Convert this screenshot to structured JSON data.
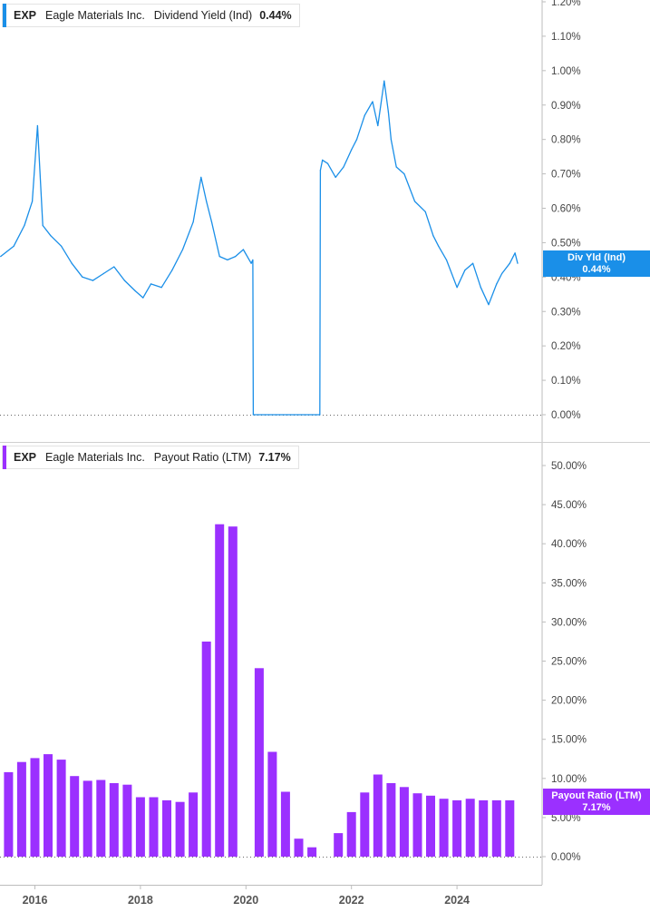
{
  "panel1": {
    "ticker": "EXP",
    "company": "Eagle Materials Inc.",
    "metric": "Dividend Yield (Ind)",
    "value": "0.44%",
    "tag_line1": "Div Yld (Ind)",
    "tag_line2": "0.44%",
    "color": "#1a8fe8"
  },
  "panel2": {
    "ticker": "EXP",
    "company": "Eagle Materials Inc.",
    "metric": "Payout Ratio (LTM)",
    "value": "7.17%",
    "tag_line1": "Payout Ratio (LTM)",
    "tag_line2": "7.17%",
    "color": "#9b30ff"
  },
  "chart_data": [
    {
      "type": "line",
      "ylim": [
        0,
        1.2
      ],
      "y_ticks": [
        "0.00%",
        "0.10%",
        "0.20%",
        "0.30%",
        "0.40%",
        "0.50%",
        "0.60%",
        "0.70%",
        "0.80%",
        "0.90%",
        "1.00%",
        "1.10%",
        "1.20%"
      ],
      "x_ticks": [
        "2016",
        "2018",
        "2020",
        "2022",
        "2024"
      ],
      "series": [
        {
          "x": [
            2015.35,
            2015.6,
            2015.8,
            2015.95,
            2016.05,
            2016.15,
            2016.3,
            2016.5,
            2016.7,
            2016.9,
            2017.1,
            2017.3,
            2017.5,
            2017.7,
            2017.9,
            2018.05,
            2018.2,
            2018.4,
            2018.6,
            2018.8,
            2019.0,
            2019.15,
            2019.25,
            2019.35,
            2019.5,
            2019.65,
            2019.8,
            2019.95,
            2020.1,
            2020.13,
            2020.14,
            2021.4,
            2021.41,
            2021.45,
            2021.55,
            2021.7,
            2021.85,
            2022.0,
            2022.1,
            2022.25,
            2022.4,
            2022.5,
            2022.62,
            2022.7,
            2022.75,
            2022.85,
            2023.0,
            2023.2,
            2023.4,
            2023.55,
            2023.65,
            2023.8,
            2024.0,
            2024.15,
            2024.3,
            2024.45,
            2024.6,
            2024.75,
            2024.85,
            2025.0,
            2025.1,
            2025.15
          ],
          "y": [
            0.46,
            0.49,
            0.55,
            0.62,
            0.84,
            0.55,
            0.52,
            0.49,
            0.44,
            0.4,
            0.39,
            0.41,
            0.43,
            0.39,
            0.36,
            0.34,
            0.38,
            0.37,
            0.42,
            0.48,
            0.56,
            0.69,
            0.62,
            0.56,
            0.46,
            0.45,
            0.46,
            0.48,
            0.44,
            0.45,
            0.0,
            0.0,
            0.71,
            0.74,
            0.73,
            0.69,
            0.72,
            0.77,
            0.8,
            0.87,
            0.91,
            0.84,
            0.97,
            0.88,
            0.8,
            0.72,
            0.7,
            0.62,
            0.59,
            0.52,
            0.49,
            0.45,
            0.37,
            0.42,
            0.44,
            0.37,
            0.32,
            0.38,
            0.41,
            0.44,
            0.47,
            0.44
          ]
        }
      ]
    },
    {
      "type": "bar",
      "ylim": [
        0,
        50
      ],
      "y_ticks": [
        "0.00%",
        "5.00%",
        "10.00%",
        "15.00%",
        "20.00%",
        "25.00%",
        "30.00%",
        "35.00%",
        "40.00%",
        "45.00%",
        "50.00%"
      ],
      "x_ticks": [
        "2016",
        "2018",
        "2020",
        "2022",
        "2024"
      ],
      "x": [
        2015.5,
        2015.75,
        2016.0,
        2016.25,
        2016.5,
        2016.75,
        2017.0,
        2017.25,
        2017.5,
        2017.75,
        2018.0,
        2018.25,
        2018.5,
        2018.75,
        2019.0,
        2019.25,
        2019.5,
        2019.75,
        2020.0,
        2020.25,
        2020.5,
        2020.75,
        2021.0,
        2021.25,
        2021.5,
        2021.75,
        2022.0,
        2022.25,
        2022.5,
        2022.75,
        2023.0,
        2023.25,
        2023.5,
        2023.75,
        2024.0,
        2024.25,
        2024.5,
        2024.75,
        2025.0
      ],
      "values": [
        10.8,
        12.1,
        12.6,
        13.1,
        12.4,
        10.3,
        9.7,
        9.8,
        9.4,
        9.2,
        7.6,
        7.6,
        7.2,
        7.0,
        8.2,
        27.5,
        42.5,
        42.2,
        0,
        24.1,
        13.4,
        8.3,
        2.3,
        1.2,
        0,
        3.0,
        5.7,
        8.2,
        10.5,
        9.4,
        8.9,
        8.1,
        7.8,
        7.4,
        7.2,
        7.4,
        7.2,
        7.2,
        7.2
      ]
    }
  ]
}
